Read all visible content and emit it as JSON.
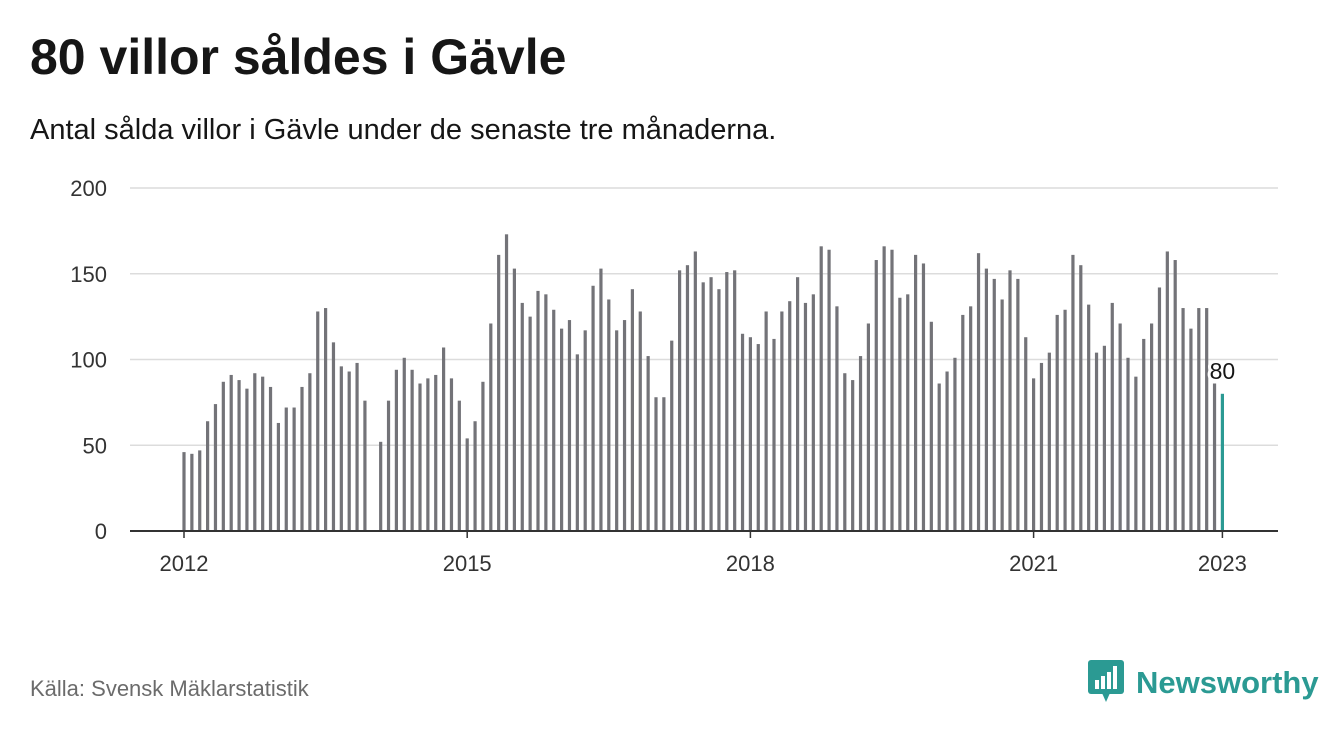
{
  "title": "80 villor såldes i Gävle",
  "subtitle": "Antal sålda villor i Gävle under de senaste tre månaderna.",
  "source": "Källa: Svensk Mäklarstatistik",
  "brand": {
    "name": "Newsworthy",
    "icon": "newsworthy-logo-icon",
    "color": "#2b9a93"
  },
  "colors": {
    "bar": "#737378",
    "highlight": "#2b9a93",
    "grid": "#dcdcdc",
    "axis": "#333333"
  },
  "chart_data": {
    "type": "bar",
    "title": "80 villor såldes i Gävle",
    "subtitle": "Antal sålda villor i Gävle under de senaste tre månaderna.",
    "xlabel": "",
    "ylabel": "",
    "ylim": [
      0,
      200
    ],
    "yticks": [
      "0",
      "50",
      "100",
      "150",
      "200"
    ],
    "xticks": [
      "2012",
      "2015",
      "2018",
      "2021",
      "2023"
    ],
    "grid": true,
    "legend": "none",
    "start": "2012-01",
    "end": "2023-01",
    "frequency": "monthly",
    "values": [
      46,
      45,
      47,
      64,
      74,
      87,
      91,
      88,
      83,
      92,
      90,
      84,
      63,
      72,
      72,
      84,
      92,
      128,
      130,
      110,
      96,
      93,
      98,
      76,
      null,
      52,
      76,
      94,
      101,
      94,
      86,
      89,
      91,
      107,
      89,
      76,
      54,
      64,
      87,
      121,
      161,
      173,
      153,
      133,
      125,
      140,
      138,
      129,
      118,
      123,
      103,
      117,
      143,
      153,
      135,
      117,
      123,
      141,
      128,
      102,
      78,
      78,
      111,
      152,
      155,
      163,
      145,
      148,
      141,
      151,
      152,
      115,
      113,
      109,
      128,
      112,
      128,
      134,
      148,
      133,
      138,
      166,
      164,
      131,
      92,
      88,
      102,
      121,
      158,
      166,
      164,
      136,
      138,
      161,
      156,
      122,
      86,
      93,
      101,
      126,
      131,
      162,
      153,
      147,
      135,
      152,
      147,
      113,
      89,
      98,
      104,
      126,
      129,
      161,
      155,
      132,
      104,
      108,
      133,
      121,
      101,
      90,
      112,
      121,
      142,
      163,
      158,
      130,
      118,
      130,
      130,
      86,
      80
    ],
    "highlight": {
      "label": "80",
      "value": 80,
      "date": "2023-01"
    }
  }
}
